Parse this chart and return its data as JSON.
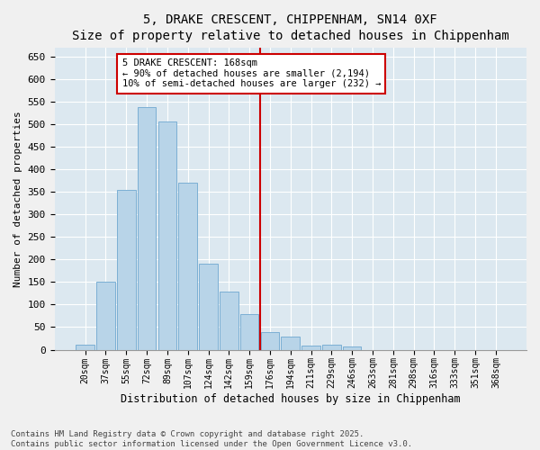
{
  "title": "5, DRAKE CRESCENT, CHIPPENHAM, SN14 0XF",
  "subtitle": "Size of property relative to detached houses in Chippenham",
  "xlabel": "Distribution of detached houses by size in Chippenham",
  "ylabel": "Number of detached properties",
  "categories": [
    "20sqm",
    "37sqm",
    "55sqm",
    "72sqm",
    "89sqm",
    "107sqm",
    "124sqm",
    "142sqm",
    "159sqm",
    "176sqm",
    "194sqm",
    "211sqm",
    "229sqm",
    "246sqm",
    "263sqm",
    "281sqm",
    "298sqm",
    "316sqm",
    "333sqm",
    "351sqm",
    "368sqm"
  ],
  "values": [
    12,
    150,
    355,
    538,
    505,
    370,
    190,
    128,
    78,
    40,
    30,
    10,
    12,
    8,
    0,
    0,
    0,
    0,
    0,
    0,
    0
  ],
  "bar_color": "#b8d4e8",
  "bar_edge_color": "#7bafd4",
  "vline_x": 9.0,
  "vline_color": "#cc0000",
  "annotation_text": "5 DRAKE CRESCENT: 168sqm\n← 90% of detached houses are smaller (2,194)\n10% of semi-detached houses are larger (232) →",
  "annotation_box_color": "#cc0000",
  "ylim": [
    0,
    670
  ],
  "yticks": [
    0,
    50,
    100,
    150,
    200,
    250,
    300,
    350,
    400,
    450,
    500,
    550,
    600,
    650
  ],
  "background_color": "#dce8f0",
  "plot_bg_color": "#dce8f0",
  "fig_bg_color": "#f0f0f0",
  "grid_color": "#ffffff",
  "footer": "Contains HM Land Registry data © Crown copyright and database right 2025.\nContains public sector information licensed under the Open Government Licence v3.0.",
  "title_fontsize": 10,
  "subtitle_fontsize": 9,
  "xlabel_fontsize": 8.5,
  "ylabel_fontsize": 8,
  "tick_fontsize": 8,
  "xtick_fontsize": 7,
  "footer_fontsize": 6.5,
  "annot_fontsize": 7.5
}
